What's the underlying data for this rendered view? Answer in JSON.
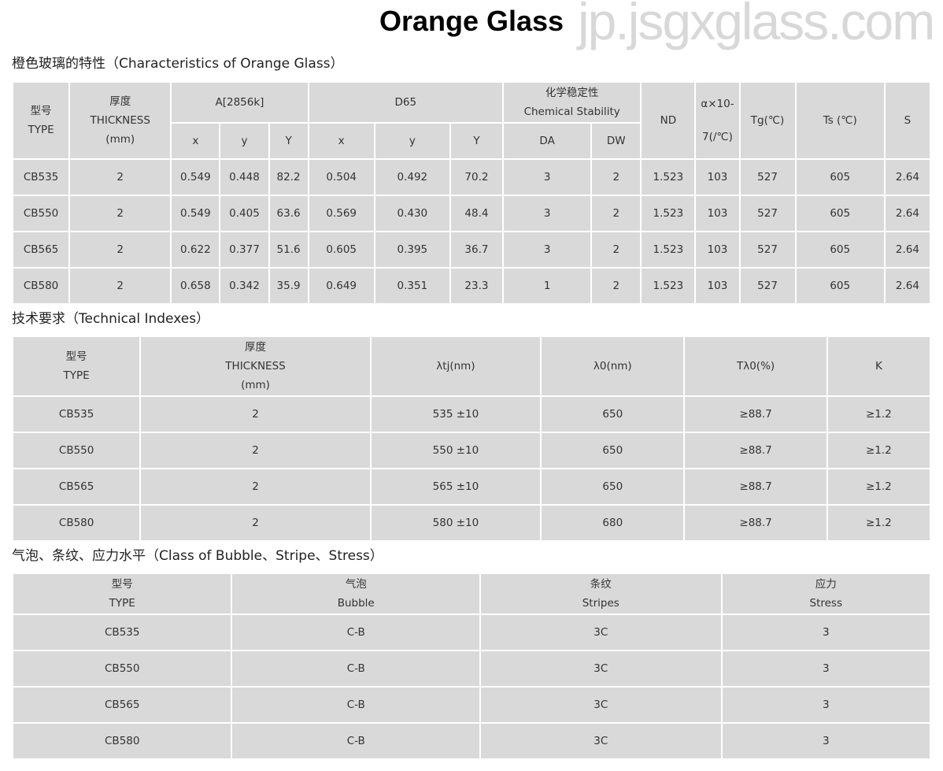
{
  "title": "Orange Glass",
  "section1": {
    "heading": "橙色玻璃的特性（Characteristics of Orange Glass）",
    "headers": {
      "type_cn": "型号",
      "type_en": "TYPE",
      "thick_cn": "厚度",
      "thick_en": "THICKNESS",
      "thick_unit": "(mm)",
      "a": "A[2856k]",
      "d65": "D65",
      "chem_cn": "化学稳定性",
      "chem_en": "Chemical Stability",
      "nd": "ND",
      "alpha1": "α×10-",
      "alpha2": "7(/℃)",
      "tg": "Tg(℃)",
      "ts": "Ts (℃)",
      "s": "S",
      "x": "x",
      "y": "y",
      "Y": "Y",
      "da": "DA",
      "dw": "DW"
    },
    "rows": [
      [
        "CB535",
        "2",
        "0.549",
        "0.448",
        "82.2",
        "0.504",
        "0.492",
        "70.2",
        "3",
        "2",
        "1.523",
        "103",
        "527",
        "605",
        "2.64"
      ],
      [
        "CB550",
        "2",
        "0.549",
        "0.405",
        "63.6",
        "0.569",
        "0.430",
        "48.4",
        "3",
        "2",
        "1.523",
        "103",
        "527",
        "605",
        "2.64"
      ],
      [
        "CB565",
        "2",
        "0.622",
        "0.377",
        "51.6",
        "0.605",
        "0.395",
        "36.7",
        "3",
        "2",
        "1.523",
        "103",
        "527",
        "605",
        "2.64"
      ],
      [
        "CB580",
        "2",
        "0.658",
        "0.342",
        "35.9",
        "0.649",
        "0.351",
        "23.3",
        "1",
        "2",
        "1.523",
        "103",
        "527",
        "605",
        "2.64"
      ]
    ]
  },
  "section2": {
    "heading": "技术要求（Technical Indexes）",
    "headers": {
      "type_cn": "型号",
      "type_en": "TYPE",
      "thick_cn": "厚度",
      "thick_en": "THICKNESS",
      "thick_unit": "(mm)",
      "ltj": "λtj(nm)",
      "l0": "λ0(nm)",
      "tl0": "Tλ0(%)",
      "k": "K"
    },
    "rows": [
      [
        "CB535",
        "2",
        "535 ±10",
        "650",
        "≥88.7",
        "≥1.2"
      ],
      [
        "CB550",
        "2",
        "550 ±10",
        "650",
        "≥88.7",
        "≥1.2"
      ],
      [
        "CB565",
        "2",
        "565 ±10",
        "650",
        "≥88.7",
        "≥1.2"
      ],
      [
        "CB580",
        "2",
        "580 ±10",
        "680",
        "≥88.7",
        "≥1.2"
      ]
    ]
  },
  "section3": {
    "heading": "气泡、条纹、应力水平（Class of Bubble、Stripe、Stress）",
    "headers": {
      "type_cn": "型号",
      "type_en": "TYPE",
      "bubble_cn": "气泡",
      "bubble_en": "Bubble",
      "stripe_cn": "条纹",
      "stripe_en": "Stripes",
      "stress_cn": "应力",
      "stress_en": "Stress"
    },
    "rows": [
      [
        "CB535",
        "C-B",
        "3C",
        "3"
      ],
      [
        "CB550",
        "C-B",
        "3C",
        "3"
      ],
      [
        "CB565",
        "C-B",
        "3C",
        "3"
      ],
      [
        "CB580",
        "C-B",
        "3C",
        "3"
      ]
    ]
  },
  "watermark": "jp.jsgxglass.com"
}
